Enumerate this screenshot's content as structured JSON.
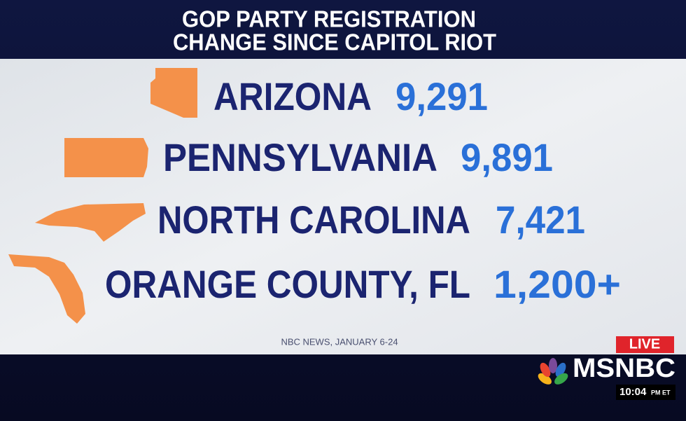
{
  "header": {
    "title_lines": [
      "GOP PARTY REGISTRATION",
      "CHANGE SINCE CAPITOL RIOT"
    ]
  },
  "rows": [
    {
      "label": "ARIZONA",
      "value": "9,291"
    },
    {
      "label": "PENNSYLVANIA",
      "value": "9,891"
    },
    {
      "label": "NORTH CAROLINA",
      "value": "7,421"
    },
    {
      "label": "ORANGE COUNTY, FL",
      "value": "1,200+"
    }
  ],
  "source": "NBC NEWS, JANUARY 6-24",
  "live": "LIVE",
  "network": "MSNBC",
  "clock": {
    "time": "10:04",
    "zone": "PM ET"
  }
}
